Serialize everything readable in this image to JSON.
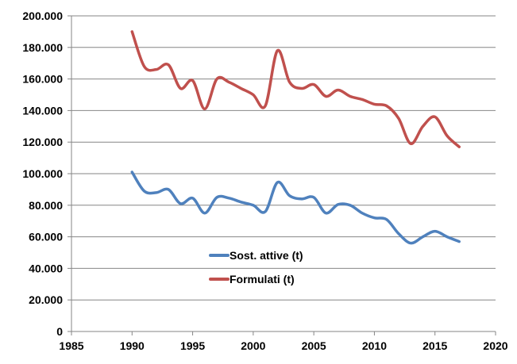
{
  "chart_data": {
    "type": "line",
    "title": "",
    "xlabel": "",
    "ylabel": "",
    "xlim": [
      1985,
      2020
    ],
    "ylim": [
      0,
      200000
    ],
    "x_ticks": [
      1985,
      1990,
      1995,
      2000,
      2005,
      2010,
      2015,
      2020
    ],
    "x_tick_labels": [
      "1985",
      "1990",
      "1995",
      "2000",
      "2005",
      "2010",
      "2015",
      "2020"
    ],
    "y_ticks": [
      0,
      20000,
      40000,
      60000,
      80000,
      100000,
      120000,
      140000,
      160000,
      180000,
      200000
    ],
    "y_tick_labels": [
      "0",
      "20.000",
      "40.000",
      "60.000",
      "80.000",
      "100.000",
      "120.000",
      "140.000",
      "160.000",
      "180.000",
      "200.000"
    ],
    "grid": "horizontal",
    "legend_position": "bottom-center inside plot",
    "series": [
      {
        "name": "Sost. attive (t)",
        "color": "#4f81bd",
        "x": [
          1990,
          1991,
          1992,
          1993,
          1994,
          1995,
          1996,
          1997,
          1998,
          1999,
          2000,
          2001,
          2002,
          2003,
          2004,
          2005,
          2006,
          2007,
          2008,
          2009,
          2010,
          2011,
          2012,
          2013,
          2014,
          2015,
          2016,
          2017
        ],
        "y": [
          101000,
          89000,
          88000,
          90000,
          81000,
          84500,
          75000,
          85000,
          84500,
          82000,
          80000,
          76000,
          94500,
          86000,
          84000,
          85000,
          75000,
          80500,
          80000,
          75000,
          72000,
          71000,
          62000,
          56000,
          60000,
          63500,
          60000,
          57000
        ]
      },
      {
        "name": "Formulati (t)",
        "color": "#c0504d",
        "x": [
          1990,
          1991,
          1992,
          1993,
          1994,
          1995,
          1996,
          1997,
          1998,
          1999,
          2000,
          2001,
          2002,
          2003,
          2004,
          2005,
          2006,
          2007,
          2008,
          2009,
          2010,
          2011,
          2012,
          2013,
          2014,
          2015,
          2016,
          2017
        ],
        "y": [
          190000,
          168000,
          166000,
          169000,
          154000,
          159000,
          141000,
          160000,
          158000,
          154000,
          150000,
          143000,
          178000,
          158000,
          154000,
          156500,
          149000,
          153000,
          149000,
          147000,
          144000,
          143000,
          135000,
          119000,
          130000,
          136000,
          124000,
          117000
        ]
      }
    ]
  }
}
